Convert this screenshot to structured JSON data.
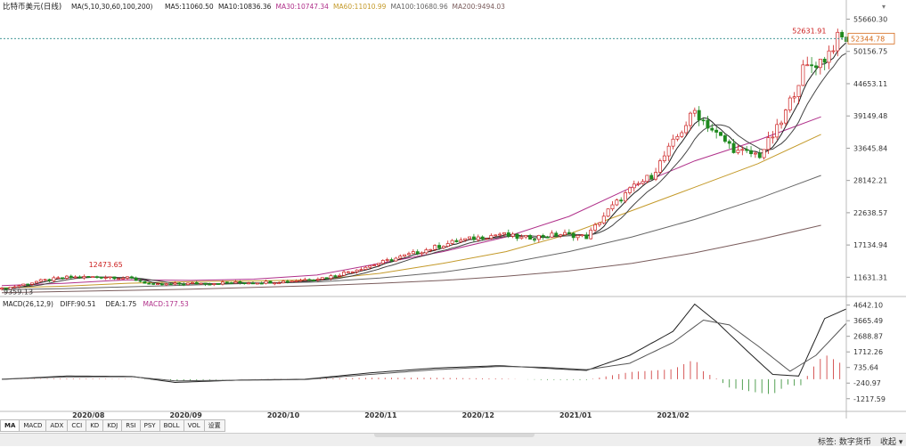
{
  "chart_data": [
    {
      "type": "candlestick",
      "title": "比特币美元(日线)",
      "ma_legend": [
        {
          "label": "MA(5,10,30,60,100,200)",
          "color": "#222222"
        },
        {
          "label": "MA5:11060.50",
          "color": "#222222"
        },
        {
          "label": "MA10:10836.36",
          "color": "#222222"
        },
        {
          "label": "MA30:10747.34",
          "color": "#b0308a"
        },
        {
          "label": "MA60:11010.99",
          "color": "#c49a2a"
        },
        {
          "label": "MA100:10680.96",
          "color": "#666666"
        },
        {
          "label": "MA200:9494.03",
          "color": "#7a5c5c"
        }
      ],
      "y_ticks": [
        "55660.30",
        "50156.75",
        "44653.11",
        "39149.48",
        "33645.84",
        "28142.21",
        "22638.57",
        "17134.94",
        "11631.31"
      ],
      "y_tick_values": [
        55660.3,
        50156.75,
        44653.11,
        39149.48,
        33645.84,
        28142.21,
        22638.57,
        17134.94,
        11631.31
      ],
      "ylim": [
        8800,
        56800
      ],
      "x_labels": [
        "2020/08",
        "2020/09",
        "2020/10",
        "2020/11",
        "2020/12",
        "2021/01",
        "2021/02"
      ],
      "annotations": {
        "high": "52631.91",
        "low": "9359.13",
        "local_high": "12473.65",
        "current": "52344.78"
      },
      "colors": {
        "up": "#cc2020",
        "down": "#1e8a1e",
        "current_line": "#2a8a8a",
        "current_label": "#d46a1a"
      },
      "closes": [
        {
          "x": 0,
          "y": 9600
        },
        {
          "x": 8,
          "y": 10900
        },
        {
          "x": 15,
          "y": 11600
        },
        {
          "x": 25,
          "y": 11700
        },
        {
          "x": 30,
          "y": 11400
        },
        {
          "x": 35,
          "y": 10300
        },
        {
          "x": 45,
          "y": 10600
        },
        {
          "x": 55,
          "y": 10700
        },
        {
          "x": 65,
          "y": 10900
        },
        {
          "x": 75,
          "y": 11600
        },
        {
          "x": 85,
          "y": 13600
        },
        {
          "x": 95,
          "y": 15700
        },
        {
          "x": 105,
          "y": 17800
        },
        {
          "x": 115,
          "y": 19000
        },
        {
          "x": 120,
          "y": 18300
        },
        {
          "x": 130,
          "y": 19000
        },
        {
          "x": 135,
          "y": 18500
        },
        {
          "x": 140,
          "y": 23000
        },
        {
          "x": 145,
          "y": 26500
        },
        {
          "x": 150,
          "y": 29000
        },
        {
          "x": 155,
          "y": 34500
        },
        {
          "x": 160,
          "y": 40000
        },
        {
          "x": 165,
          "y": 36000
        },
        {
          "x": 170,
          "y": 33000
        },
        {
          "x": 175,
          "y": 32500
        },
        {
          "x": 180,
          "y": 38000
        },
        {
          "x": 185,
          "y": 47000
        },
        {
          "x": 190,
          "y": 49000
        },
        {
          "x": 193,
          "y": 52300
        }
      ],
      "ma_series": [
        {
          "label": "MA30",
          "color": "#b0308a",
          "y": [
            10200,
            10600,
            11200,
            11100,
            11300,
            12000,
            14000,
            16000,
            18500,
            22000,
            27000,
            31500,
            35000,
            39000
          ]
        },
        {
          "label": "MA60",
          "color": "#c49a2a",
          "y": [
            9800,
            10100,
            10600,
            10900,
            11000,
            11200,
            12300,
            14000,
            16000,
            19000,
            23000,
            27000,
            31000,
            36000
          ]
        },
        {
          "label": "MA100",
          "color": "#666666",
          "y": [
            9500,
            9700,
            10000,
            10300,
            10600,
            10800,
            11500,
            12500,
            14000,
            16000,
            18500,
            21500,
            25000,
            29000
          ]
        },
        {
          "label": "MA200",
          "color": "#7a5c5c",
          "y": [
            9000,
            9200,
            9400,
            9600,
            9900,
            10200,
            10600,
            11100,
            11800,
            12700,
            14000,
            15800,
            18000,
            20500
          ]
        }
      ]
    },
    {
      "type": "macd",
      "title": "MACD(26,12,9)",
      "legend": [
        {
          "label": "MACD(26,12,9)",
          "color": "#222222"
        },
        {
          "label": "DIFF:90.51",
          "color": "#222222"
        },
        {
          "label": "DEA:1.75",
          "color": "#222222"
        },
        {
          "label": "MACD:177.53",
          "color": "#b0308a"
        }
      ],
      "y_ticks": [
        "4642.10",
        "3665.49",
        "2688.87",
        "1712.26",
        "735.64",
        "-240.97",
        "-1217.59"
      ],
      "y_tick_values": [
        4642.1,
        3665.49,
        2688.87,
        1712.26,
        735.64,
        -240.97,
        -1217.59
      ],
      "ylim": [
        -1900,
        4900
      ],
      "diff": [
        {
          "x": 0,
          "y": 0
        },
        {
          "x": 15,
          "y": 200
        },
        {
          "x": 30,
          "y": 180
        },
        {
          "x": 40,
          "y": -200
        },
        {
          "x": 55,
          "y": -50
        },
        {
          "x": 70,
          "y": 0
        },
        {
          "x": 85,
          "y": 400
        },
        {
          "x": 100,
          "y": 700
        },
        {
          "x": 115,
          "y": 850
        },
        {
          "x": 125,
          "y": 700
        },
        {
          "x": 135,
          "y": 550
        },
        {
          "x": 145,
          "y": 1500
        },
        {
          "x": 155,
          "y": 3000
        },
        {
          "x": 160,
          "y": 4700
        },
        {
          "x": 165,
          "y": 3600
        },
        {
          "x": 172,
          "y": 1800
        },
        {
          "x": 178,
          "y": 300
        },
        {
          "x": 184,
          "y": 200
        },
        {
          "x": 190,
          "y": 3800
        },
        {
          "x": 195,
          "y": 4400
        }
      ],
      "dea": [
        {
          "x": 0,
          "y": 0
        },
        {
          "x": 15,
          "y": 150
        },
        {
          "x": 30,
          "y": 160
        },
        {
          "x": 40,
          "y": -100
        },
        {
          "x": 55,
          "y": -60
        },
        {
          "x": 70,
          "y": -20
        },
        {
          "x": 85,
          "y": 300
        },
        {
          "x": 100,
          "y": 600
        },
        {
          "x": 115,
          "y": 800
        },
        {
          "x": 125,
          "y": 750
        },
        {
          "x": 135,
          "y": 600
        },
        {
          "x": 145,
          "y": 1000
        },
        {
          "x": 155,
          "y": 2300
        },
        {
          "x": 162,
          "y": 3700
        },
        {
          "x": 168,
          "y": 3400
        },
        {
          "x": 175,
          "y": 2000
        },
        {
          "x": 182,
          "y": 500
        },
        {
          "x": 188,
          "y": 1500
        },
        {
          "x": 195,
          "y": 3500
        }
      ],
      "hist_desc": "histogram bars follow DIFF - DEA: small near zero until late 2020, positive bars Dec-Jan, negative bars late Jan, positive bars February"
    }
  ],
  "tabs": [
    "MA",
    "MACD",
    "ADX",
    "CCI",
    "KD",
    "KDJ",
    "RSI",
    "PSY",
    "BOLL",
    "VOL",
    "设置"
  ],
  "footer": {
    "tag": "标签: 数字货币",
    "collapse": "收起 ▾"
  }
}
